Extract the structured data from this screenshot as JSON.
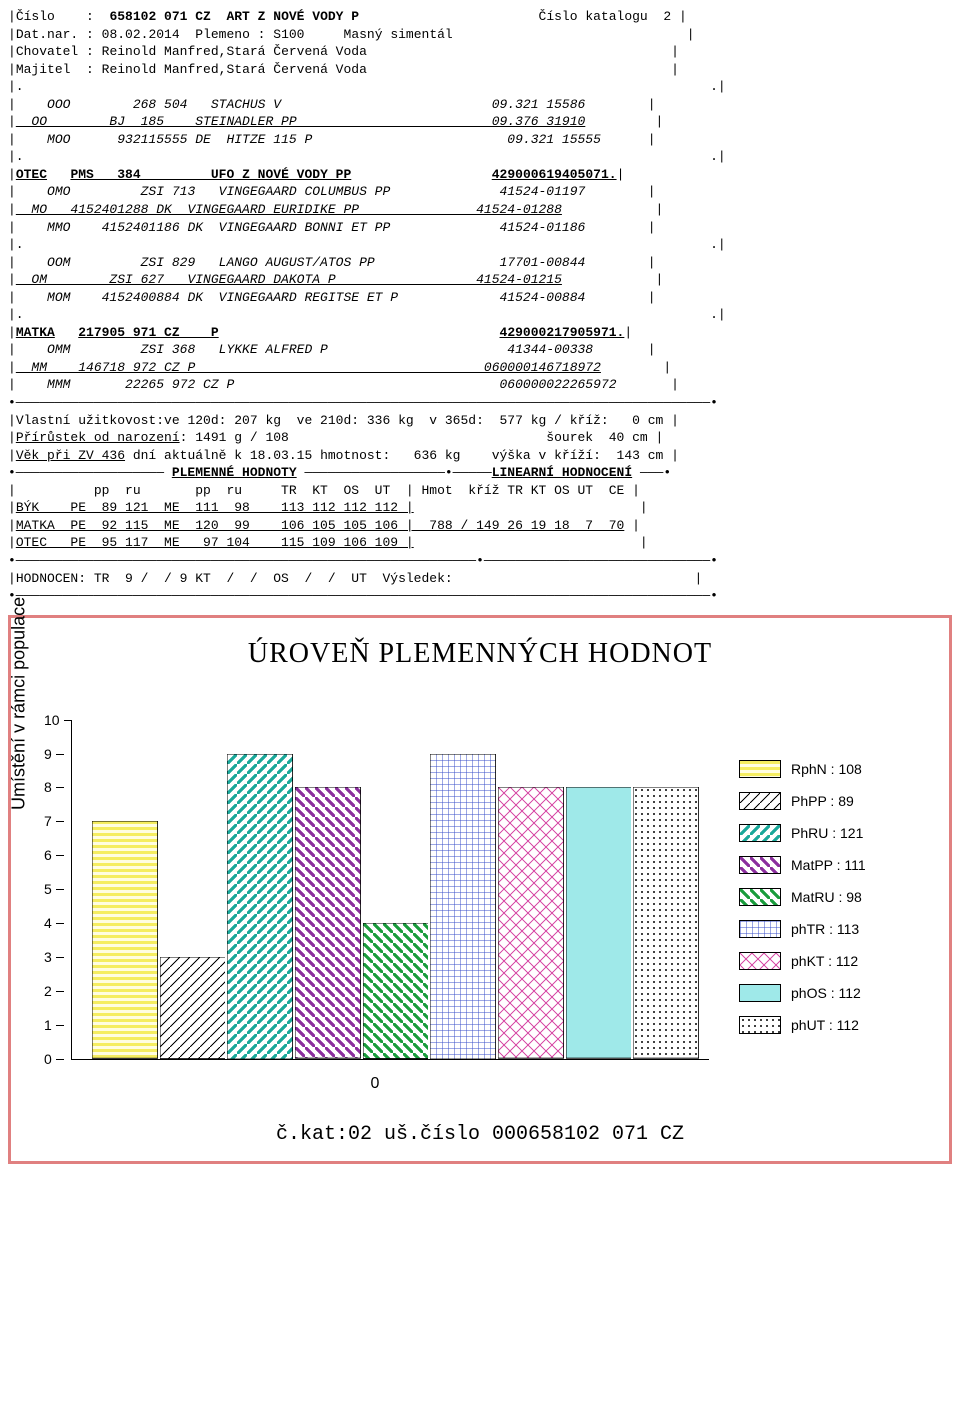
{
  "header": {
    "cislo_lbl": "Číslo",
    "cislo_val": "658102 071 CZ  ART Z NOVÉ VODY P",
    "katalog_lbl": "Číslo katalogu",
    "katalog_val": "2",
    "dat_lbl": "Dat.nar.",
    "dat_val": "08.02.2014",
    "plemeno_lbl": "Plemeno",
    "plemeno_val": "S100",
    "plemeno_txt": "Masný simentál",
    "chov_lbl": "Chovatel",
    "chov_val": "Reinold Manfred,Stará Červená Voda",
    "maj_lbl": "Majitel",
    "maj_val": "Reinold Manfred,Stará Červená Voda"
  },
  "ped": {
    "ooo": "    OOO        268 504   STACHUS V                           09.321 15586",
    "oo": "  OO        BJ  185    STEINADLER PP                         09.376 31910",
    "moo": "    MOO      932115555 DE  HITZE 115 P                         09.321 15555",
    "otec_lbl": "OTEC",
    "otec_mid": "PMS   384         UFO Z NOVÉ VODY PP",
    "otec_num": "429000619405071.",
    "omo": "    OMO         ZSI 713   VINGEGAARD COLUMBUS PP              41524-01197",
    "mo": "  MO   4152401288 DK  VINGEGAARD EURIDIKE PP               41524-01288",
    "mmo": "    MMO    4152401186 DK  VINGEGAARD BONNI ET PP              41524-01186",
    "oom": "    OOM         ZSI 829   LANGO AUGUST/ATOS PP                17701-00844",
    "om": "  OM        ZSI 627   VINGEGAARD DAKOTA P                  41524-01215",
    "mom": "    MOM    4152400884 DK  VINGEGAARD REGITSE ET P             41524-00884",
    "matka_lbl": "MATKA",
    "matka_mid": "217905 971 CZ    P",
    "matka_num": "429000217905971.",
    "omm": "    OMM         ZSI 368   LYKKE ALFRED P                       41344-00338",
    "mm": "  MM    146718 972 CZ P                                     060000146718972",
    "mmm": "    MMM       22265 972 CZ P                                  060000022265972"
  },
  "vlast": {
    "l1": "Vlastní užitkovost:ve 120d: 207 kg  ve 210d: 336 kg  v 365d:  577 kg / kříž:   0 cm",
    "l2a": "Přírůstek od narození",
    "l2b": ": 1491 g / 108                                 šourek  40 cm",
    "l3a": "Věk při ZV 436",
    "l3b": " dní aktuálně k 18.03.15 hmotnost:   636 kg    výška v kříží:  143 cm"
  },
  "plem": {
    "title": "PLEMENNÉ HODNOTY",
    "lin_title": "LINEARNÍ HODNOCENÍ",
    "hdr1": "          pp  ru       pp  ru     TR  KT  OS  UT  | Hmot  kříž TR KT OS UT  CE",
    "byk": "BÝK    PE  89 121  ME  111  98    113 112 112 112 |",
    "matka": "MATKA  PE  92 115  ME  120  99    106 105 105 106 |  788 / 149 26 19 18  7  70",
    "otec": "OTEC   PE  95 117  ME   97 104    115 109 106 109 |"
  },
  "hodn": "HODNOCEN: TR  9 /  / 9 KT  /  /  OS  /  /  UT  Výsledek:",
  "chart": {
    "title": "ÚROVEŇ PLEMENNÝCH HODNOT",
    "ylabel": "Umístění v rámci populace",
    "xlabel": "0",
    "ymax": 10,
    "ytick_step": 1,
    "footer": "č.kat:02 uš.číslo 000658102 071 CZ",
    "bars": [
      {
        "label": "RphN",
        "val": 108,
        "h": 7,
        "pattern": "hstripe-yellow"
      },
      {
        "label": "PhPP",
        "val": 89,
        "h": 3,
        "pattern": "diag-bw"
      },
      {
        "label": "PhRU",
        "val": 121,
        "h": 9,
        "pattern": "diag-teal"
      },
      {
        "label": "MatPP",
        "val": 111,
        "h": 8,
        "pattern": "diag-purple"
      },
      {
        "label": "MatRU",
        "val": 98,
        "h": 4,
        "pattern": "diag-green"
      },
      {
        "label": "phTR",
        "val": 113,
        "h": 9,
        "pattern": "grid-blue"
      },
      {
        "label": "phKT",
        "val": 112,
        "h": 8,
        "pattern": "cross-pink"
      },
      {
        "label": "phOS",
        "val": 112,
        "h": 8,
        "pattern": "solid-cyan"
      },
      {
        "label": "phUT",
        "val": 112,
        "h": 8,
        "pattern": "dots"
      }
    ],
    "colors": {
      "hstripe-yellow": "#f7f07a",
      "diag-teal": "#1aa89a",
      "diag-purple": "#8b2e9e",
      "diag-green": "#1a9c3c",
      "grid-blue": "#3a4fc9",
      "cross-pink": "#d84fa8",
      "solid-cyan": "#7de5e5"
    }
  }
}
